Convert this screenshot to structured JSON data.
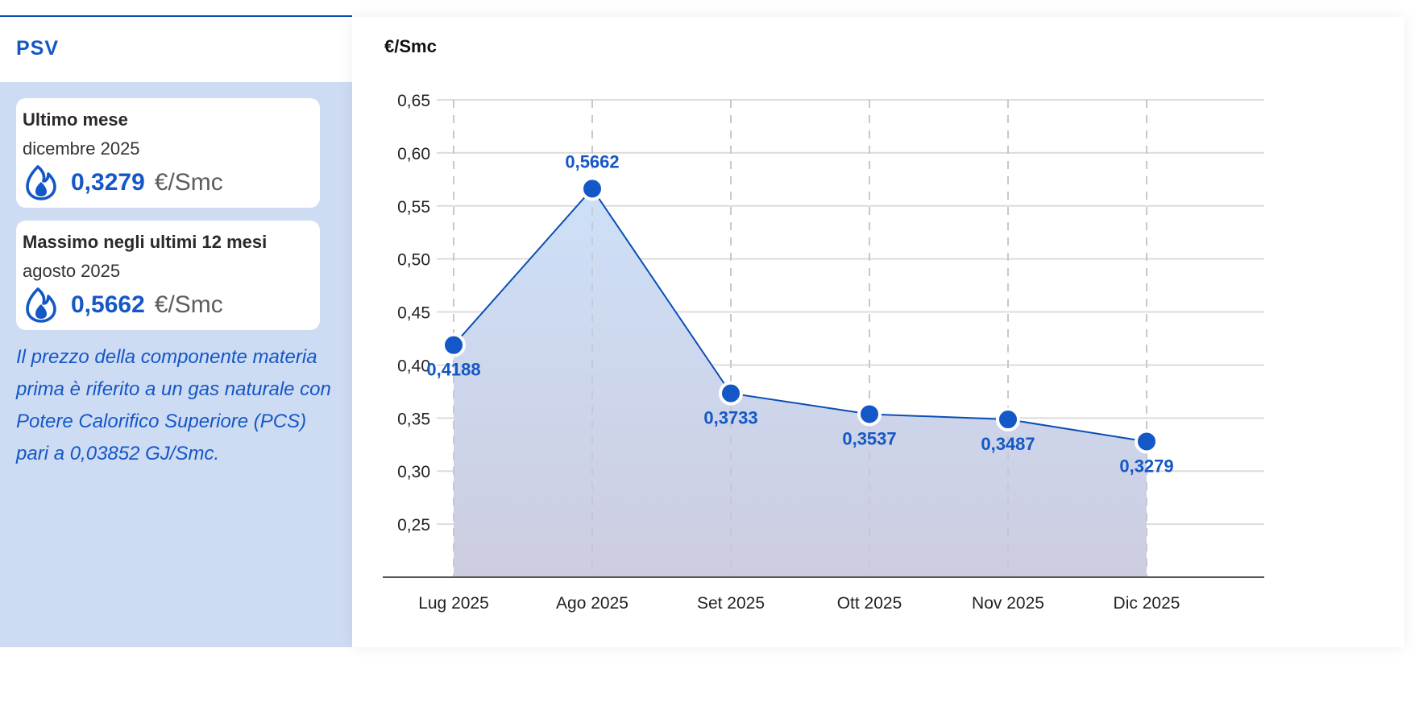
{
  "panel": {
    "title": "PSV",
    "cards": [
      {
        "label": "Ultimo mese",
        "month": "dicembre 2025",
        "value": "0,3279",
        "unit": "€/Smc",
        "icon": "flame-icon"
      },
      {
        "label": "Massimo negli ultimi 12 mesi",
        "month": "agosto 2025",
        "value": "0,5662",
        "unit": "€/Smc",
        "icon": "flame-icon"
      }
    ],
    "note": "Il prezzo della componente materia prima è riferito a un gas naturale con Potere Calorifico Superiore (PCS) pari a 0,03852 GJ/Smc."
  },
  "colors": {
    "accent": "#1457c6",
    "panel_bg": "#cedcf3",
    "line": "#0b4fb3",
    "area_top": "#cde0f8",
    "area_bottom": "#cdcde0"
  },
  "chart_data": {
    "type": "area",
    "ylabel": "€/Smc",
    "categories": [
      "Lug 2025",
      "Ago 2025",
      "Set 2025",
      "Ott 2025",
      "Nov 2025",
      "Dic 2025"
    ],
    "values": [
      0.4188,
      0.5662,
      0.3733,
      0.3537,
      0.3487,
      0.3279
    ],
    "value_labels": [
      "0,4188",
      "0,5662",
      "0,3733",
      "0,3537",
      "0,3487",
      "0,3279"
    ],
    "yticks": [
      "0,65",
      "0,60",
      "0,55",
      "0,50",
      "0,45",
      "0,40",
      "0,35",
      "0,30",
      "0,25"
    ],
    "ylim": [
      0.2,
      0.65
    ],
    "grid": true
  }
}
